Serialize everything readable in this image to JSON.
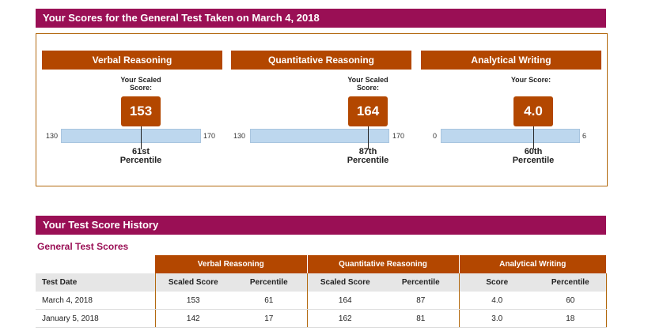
{
  "header": {
    "title": "Your Scores for the General Test Taken on March 4, 2018"
  },
  "sections": [
    {
      "name": "Verbal Reasoning",
      "score_label": "Your Scaled Score:",
      "score": "153",
      "scale_min": "130",
      "scale_max": "170",
      "percentile_value": "61st",
      "percentile_word": "Percentile"
    },
    {
      "name": "Quantitative Reasoning",
      "score_label": "Your Scaled Score:",
      "score": "164",
      "scale_min": "130",
      "scale_max": "170",
      "percentile_value": "87th",
      "percentile_word": "Percentile"
    },
    {
      "name": "Analytical Writing",
      "score_label": "Your Score:",
      "score": "4.0",
      "scale_min": "0",
      "scale_max": "6",
      "percentile_value": "60th",
      "percentile_word": "Percentile"
    }
  ],
  "history": {
    "title": "Your Test Score History",
    "subtitle": "General Test Scores",
    "groups": [
      "Verbal Reasoning",
      "Quantitative Reasoning",
      "Analytical Writing"
    ],
    "columns": [
      "Test Date",
      "Scaled Score",
      "Percentile",
      "Scaled Score",
      "Percentile",
      "Score",
      "Percentile"
    ],
    "rows": [
      [
        "March 4, 2018",
        "153",
        "61",
        "164",
        "87",
        "4.0",
        "60"
      ],
      [
        "January 5, 2018",
        "142",
        "17",
        "162",
        "81",
        "3.0",
        "18"
      ]
    ]
  },
  "colors": {
    "banner": "#9a0f55",
    "accent": "#b34700",
    "bar": "#bdd7ee"
  }
}
